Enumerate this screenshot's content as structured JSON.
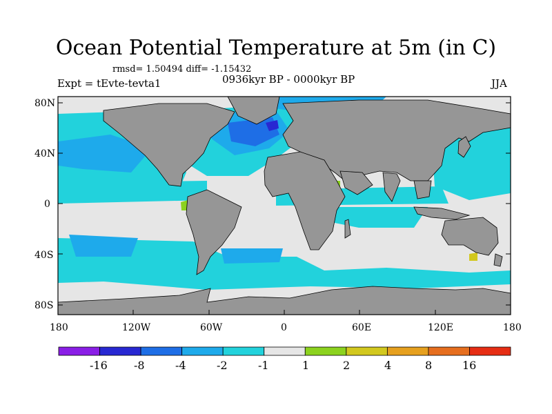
{
  "title": "Ocean Potential Temperature at 5m (in C)",
  "stats": "rmsd= 1.50494  diff= -1.15432",
  "experiment": "Expt = tEvte-tevta1",
  "period": "0936kyr BP - 0000kyr BP",
  "season": "JJA",
  "y_axis_labels": [
    "80N",
    "40N",
    "0",
    "40S",
    "80S"
  ],
  "x_axis_labels": [
    "180",
    "120W",
    "60W",
    "0",
    "60E",
    "120E",
    "180"
  ],
  "colorbar": {
    "colors": [
      "#8a1ee6",
      "#2828d2",
      "#1e6ee6",
      "#1eaaeb",
      "#22d2dc",
      "#e6e6e6",
      "#8cd21e",
      "#d2c81e",
      "#e6a01e",
      "#e66e1e",
      "#e62d14"
    ],
    "labels": [
      "-16",
      "-8",
      "-4",
      "-2",
      "-1",
      "1",
      "2",
      "4",
      "8",
      "16"
    ]
  },
  "colors": {
    "land": "#969696",
    "ocean_neutral": "#e6e6e6",
    "ocean_cool_1": "#22d2dc",
    "ocean_cool_2": "#1eaaeb",
    "ocean_cool_4": "#1e6ee6",
    "ocean_cool_8": "#2828d2",
    "ocean_warm_2": "#8cd21e",
    "ocean_warm_4": "#d2c81e"
  }
}
